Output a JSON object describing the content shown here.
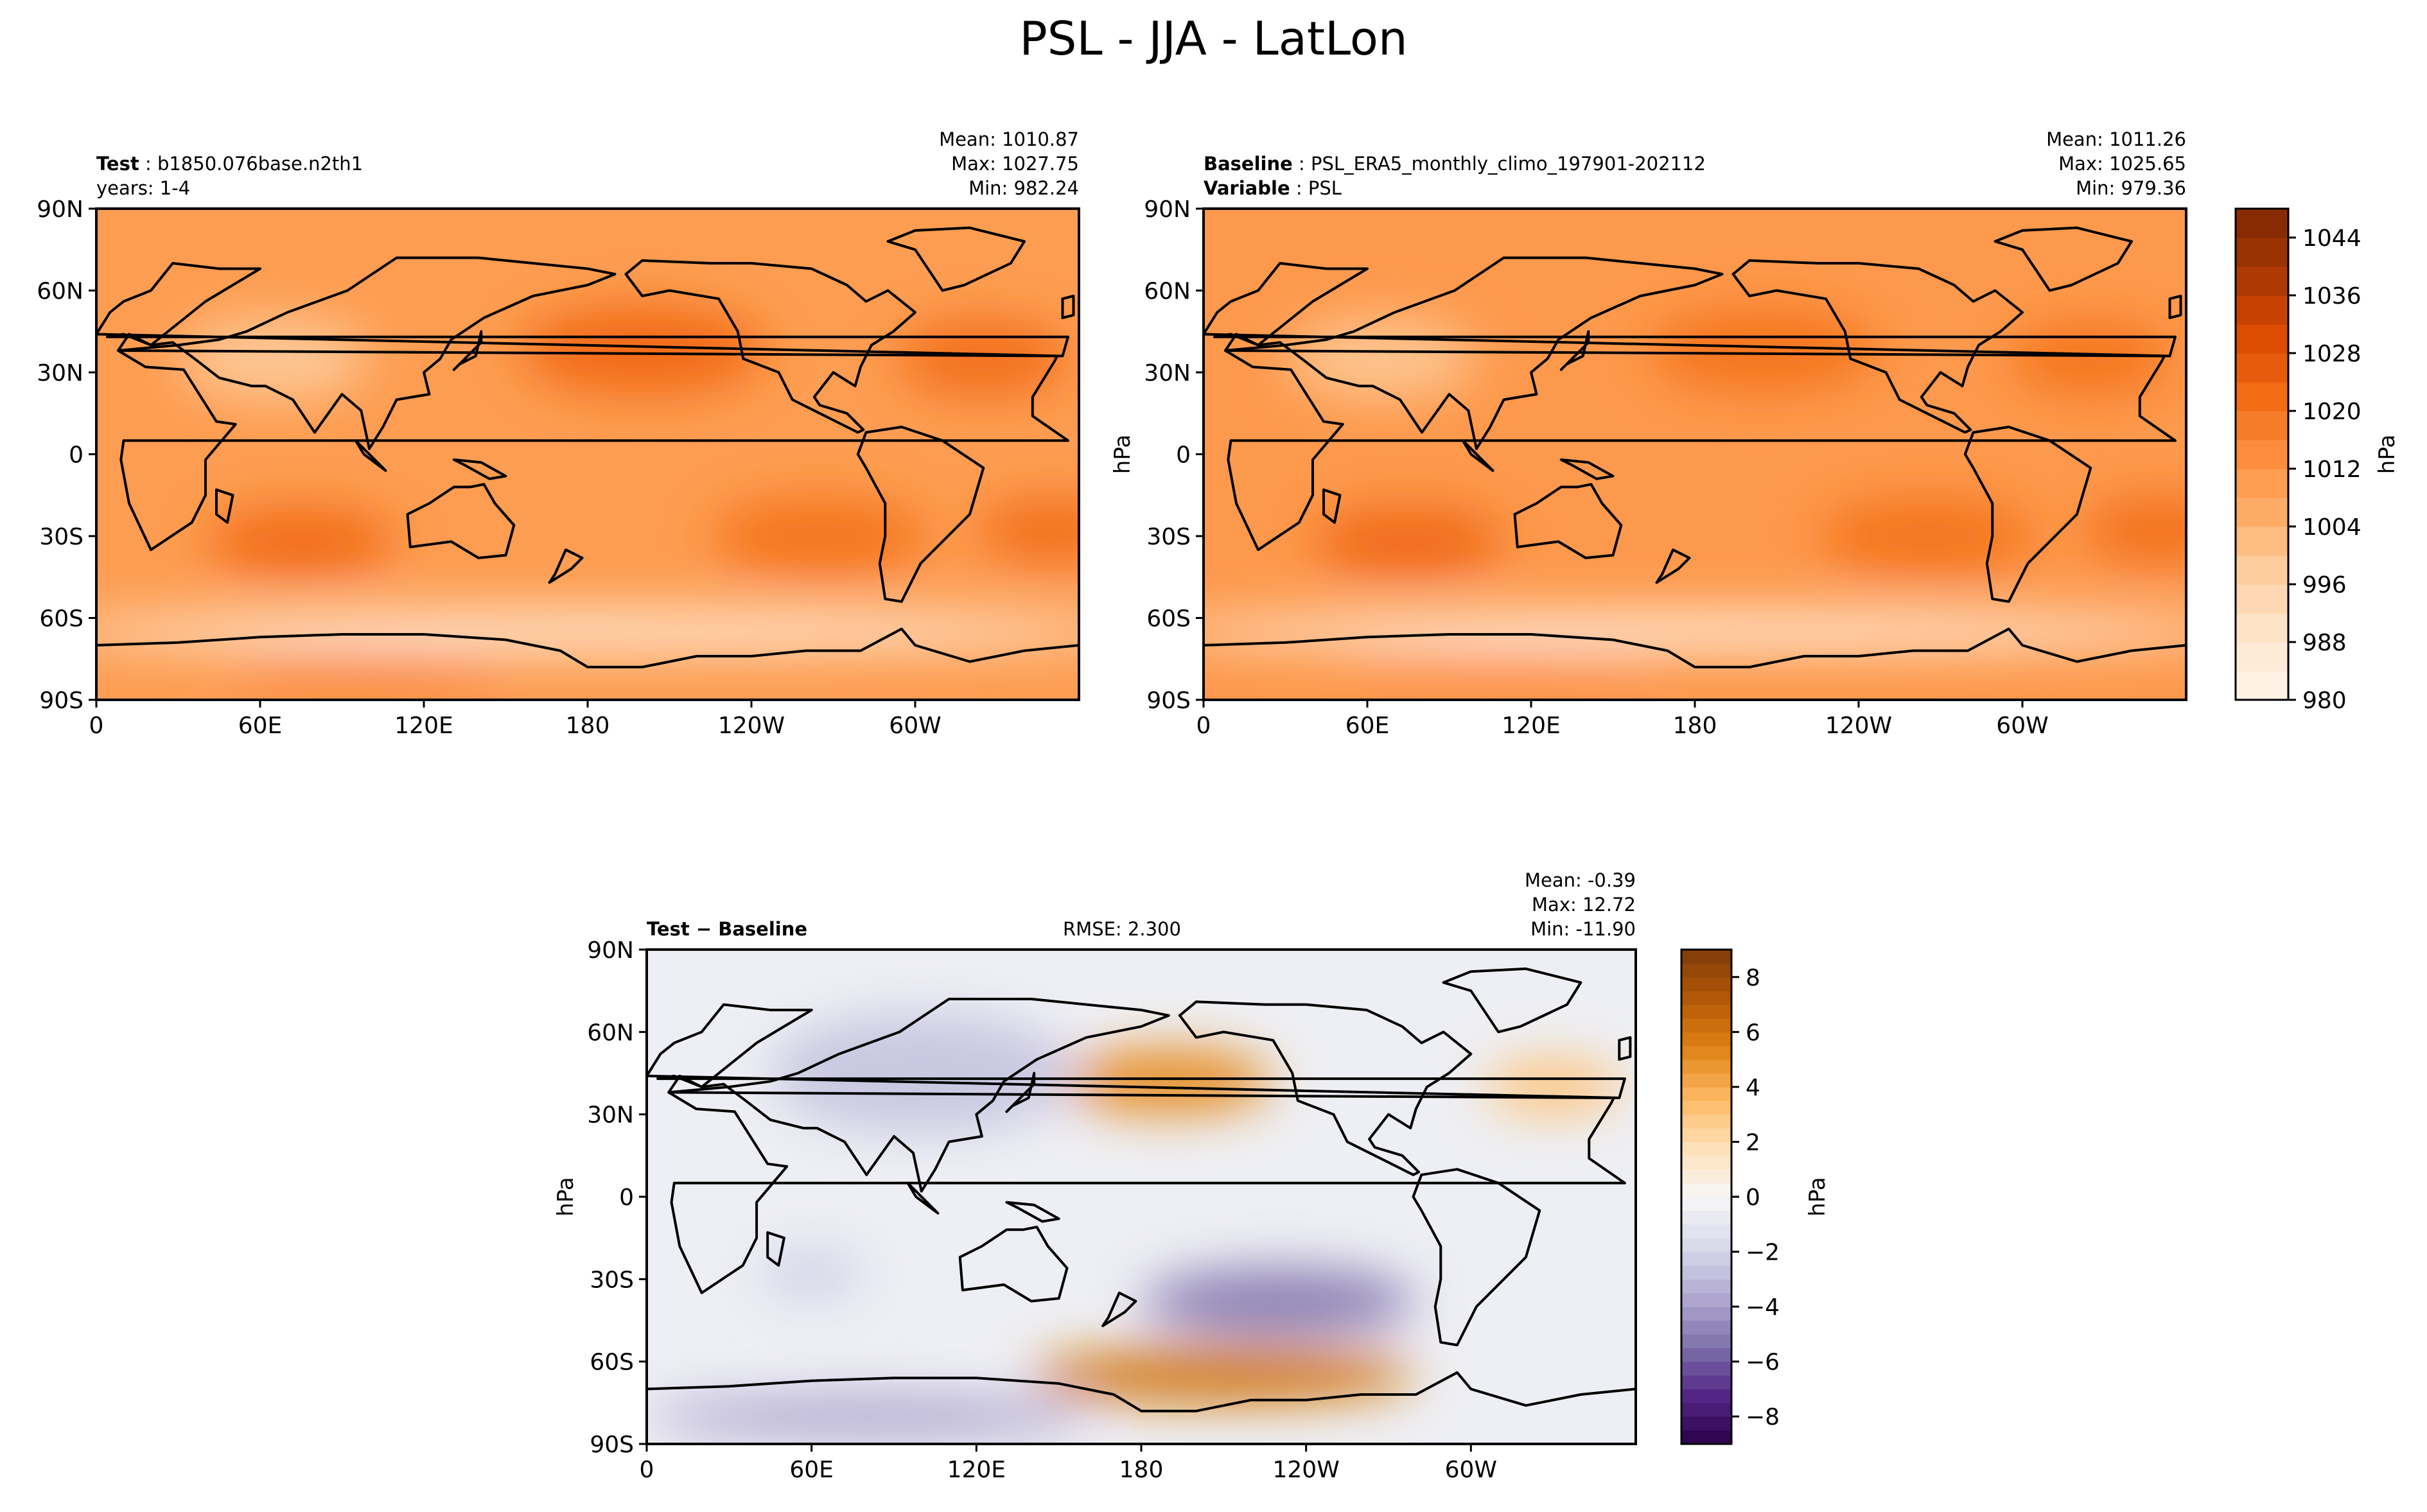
{
  "figure": {
    "title": "PSL - JJA - LatLon"
  },
  "colors": {
    "test_baseline_scale": [
      "#fff5eb",
      "#fee6ce",
      "#fdd0a2",
      "#fdae6b",
      "#fd8d3c",
      "#f16913",
      "#d94801",
      "#a63603",
      "#7f2704"
    ],
    "diff_scale": [
      "#2d004b",
      "#542788",
      "#8073ac",
      "#b2abd2",
      "#d8daeb",
      "#f7f7f7",
      "#fee0b6",
      "#fdb863",
      "#e08214",
      "#b35806",
      "#7f3b08"
    ]
  },
  "chart_data": [
    {
      "type": "heatmap",
      "panel": "test",
      "header_left": [
        {
          "label": "Test",
          "value": "b1850.076base.n2th1"
        },
        {
          "label": "",
          "value": "years: 1-4"
        }
      ],
      "stats": [
        "Mean: 1010.87",
        "Max: 1027.75",
        "Min: 982.24"
      ],
      "ylabel": "",
      "x_ticks": [
        "0",
        "60E",
        "120E",
        "180",
        "120W",
        "60W"
      ],
      "y_ticks": [
        "90N",
        "60N",
        "30N",
        "0",
        "30S",
        "60S",
        "90S"
      ],
      "xlim": [
        0,
        360
      ],
      "ylim": [
        -90,
        90
      ],
      "colorbar": null,
      "features": [
        {
          "name": "background",
          "value": 1010
        },
        {
          "name": "north-pacific-high",
          "lon": 200,
          "lat": 38,
          "rx": 45,
          "ry": 16,
          "value": 1022
        },
        {
          "name": "north-atlantic-high",
          "lon": 325,
          "lat": 35,
          "rx": 32,
          "ry": 14,
          "value": 1021
        },
        {
          "name": "south-pacific-high",
          "lon": 265,
          "lat": -30,
          "rx": 40,
          "ry": 14,
          "value": 1020
        },
        {
          "name": "south-atlantic-high",
          "lon": 350,
          "lat": -28,
          "rx": 28,
          "ry": 12,
          "value": 1021
        },
        {
          "name": "south-indian-high",
          "lon": 75,
          "lat": -32,
          "rx": 35,
          "ry": 12,
          "value": 1022
        },
        {
          "name": "asian-low",
          "lon": 65,
          "lat": 35,
          "rx": 35,
          "ry": 15,
          "value": 999
        },
        {
          "name": "southern-ocean-trough",
          "lon": 180,
          "lat": -65,
          "rx": 200,
          "ry": 7,
          "value": 985
        },
        {
          "name": "antarctic-high",
          "lon": 100,
          "lat": -80,
          "rx": 50,
          "ry": 8,
          "value": 1016
        }
      ]
    },
    {
      "type": "heatmap",
      "panel": "baseline",
      "header_left": [
        {
          "label": "Baseline",
          "value": "PSL_ERA5_monthly_climo_197901-202112"
        },
        {
          "label": "Variable",
          "value": "PSL"
        }
      ],
      "stats": [
        "Mean: 1011.26",
        "Max: 1025.65",
        "Min: 979.36"
      ],
      "ylabel": "hPa",
      "x_ticks": [
        "0",
        "60E",
        "120E",
        "180",
        "120W",
        "60W"
      ],
      "y_ticks": [
        "90N",
        "60N",
        "30N",
        "0",
        "30S",
        "60S",
        "90S"
      ],
      "xlim": [
        0,
        360
      ],
      "ylim": [
        -90,
        90
      ],
      "colorbar": {
        "label": "hPa",
        "vmin": 980,
        "vmax": 1048,
        "ticks": [
          "980",
          "988",
          "996",
          "1004",
          "1012",
          "1020",
          "1028",
          "1036",
          "1044"
        ],
        "tick_values": [
          980,
          988,
          996,
          1004,
          1012,
          1020,
          1028,
          1036,
          1044
        ]
      },
      "features": [
        {
          "name": "background",
          "value": 1011
        },
        {
          "name": "north-pacific-high",
          "lon": 205,
          "lat": 38,
          "rx": 42,
          "ry": 15,
          "value": 1020
        },
        {
          "name": "north-atlantic-high",
          "lon": 325,
          "lat": 35,
          "rx": 30,
          "ry": 13,
          "value": 1020
        },
        {
          "name": "south-pacific-high",
          "lon": 265,
          "lat": -30,
          "rx": 40,
          "ry": 14,
          "value": 1020
        },
        {
          "name": "south-atlantic-high",
          "lon": 350,
          "lat": -28,
          "rx": 28,
          "ry": 12,
          "value": 1021
        },
        {
          "name": "south-indian-high",
          "lon": 75,
          "lat": -32,
          "rx": 35,
          "ry": 12,
          "value": 1023
        },
        {
          "name": "asian-low",
          "lon": 65,
          "lat": 35,
          "rx": 35,
          "ry": 15,
          "value": 1000
        },
        {
          "name": "southern-ocean-trough",
          "lon": 180,
          "lat": -65,
          "rx": 200,
          "ry": 7,
          "value": 985
        },
        {
          "name": "antarctic-high",
          "lon": 110,
          "lat": -80,
          "rx": 55,
          "ry": 8,
          "value": 1013
        }
      ]
    },
    {
      "type": "heatmap",
      "panel": "difference",
      "header_left": [
        {
          "label": "Test − Baseline",
          "value": ""
        }
      ],
      "header_center": "RMSE: 2.300",
      "stats": [
        "Mean: -0.39",
        "Max: 12.72",
        "Min: -11.90"
      ],
      "ylabel": "hPa",
      "x_ticks": [
        "0",
        "60E",
        "120E",
        "180",
        "120W",
        "60W"
      ],
      "y_ticks": [
        "90N",
        "60N",
        "30N",
        "0",
        "30S",
        "60S",
        "90S"
      ],
      "xlim": [
        0,
        360
      ],
      "ylim": [
        -90,
        90
      ],
      "colorbar": {
        "label": "hPa",
        "vmin": -9,
        "vmax": 9,
        "ticks": [
          "8",
          "6",
          "4",
          "2",
          "0",
          "−2",
          "−4",
          "−6",
          "−8"
        ],
        "tick_values": [
          8,
          6,
          4,
          2,
          0,
          -2,
          -4,
          -6,
          -8
        ]
      },
      "features": [
        {
          "name": "background",
          "value": -0.5
        },
        {
          "name": "north-pacific-positive",
          "lon": 190,
          "lat": 42,
          "rx": 38,
          "ry": 12,
          "value": 5
        },
        {
          "name": "north-atlantic-positive",
          "lon": 330,
          "lat": 40,
          "rx": 25,
          "ry": 10,
          "value": 3
        },
        {
          "name": "asia-negative",
          "lon": 100,
          "lat": 45,
          "rx": 55,
          "ry": 22,
          "value": -2.5
        },
        {
          "name": "south-pacific-negative",
          "lon": 230,
          "lat": -38,
          "rx": 50,
          "ry": 12,
          "value": -5
        },
        {
          "name": "south-indian-negative",
          "lon": 60,
          "lat": -28,
          "rx": 20,
          "ry": 10,
          "value": -2
        },
        {
          "name": "southern-ocean-positive",
          "lon": 210,
          "lat": -65,
          "rx": 70,
          "ry": 10,
          "value": 6
        },
        {
          "name": "antarctic-negative",
          "lon": 80,
          "lat": -80,
          "rx": 80,
          "ry": 7,
          "value": -4
        }
      ]
    }
  ]
}
